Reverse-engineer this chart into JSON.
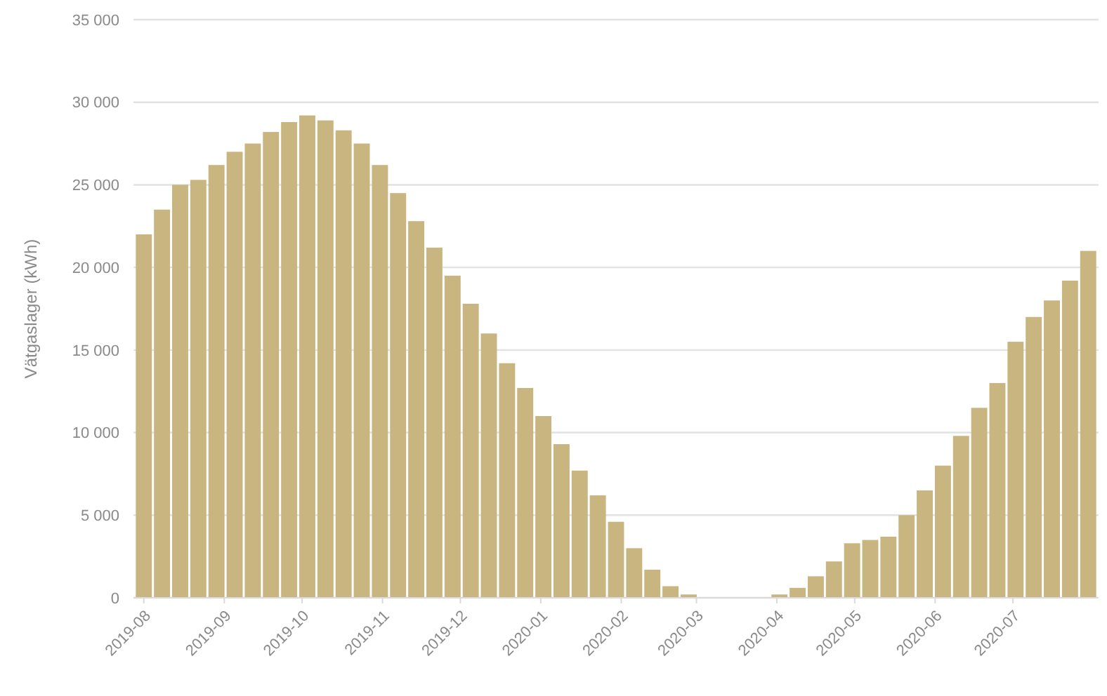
{
  "chart_data": {
    "type": "bar",
    "ylabel": "Vätgaslager (kWh)",
    "x": [
      "2019-08-01",
      "2019-08-08",
      "2019-08-15",
      "2019-08-22",
      "2019-08-29",
      "2019-09-05",
      "2019-09-12",
      "2019-09-19",
      "2019-09-26",
      "2019-10-03",
      "2019-10-10",
      "2019-10-17",
      "2019-10-24",
      "2019-10-31",
      "2019-11-07",
      "2019-11-14",
      "2019-11-21",
      "2019-11-28",
      "2019-12-05",
      "2019-12-12",
      "2019-12-19",
      "2019-12-26",
      "2020-01-02",
      "2020-01-09",
      "2020-01-16",
      "2020-01-23",
      "2020-01-30",
      "2020-02-06",
      "2020-02-13",
      "2020-02-20",
      "2020-02-27",
      "2020-03-05",
      "2020-03-12",
      "2020-03-19",
      "2020-03-26",
      "2020-04-02",
      "2020-04-09",
      "2020-04-16",
      "2020-04-23",
      "2020-04-30",
      "2020-05-07",
      "2020-05-14",
      "2020-05-21",
      "2020-05-28",
      "2020-06-04",
      "2020-06-11",
      "2020-06-18",
      "2020-06-25",
      "2020-07-02",
      "2020-07-09",
      "2020-07-16",
      "2020-07-23",
      "2020-07-30"
    ],
    "values": [
      22000,
      23500,
      25000,
      25300,
      26200,
      27000,
      27500,
      28200,
      28800,
      29200,
      28900,
      28300,
      27500,
      26200,
      24500,
      22800,
      21200,
      19500,
      17800,
      16000,
      14200,
      12700,
      11000,
      9300,
      7700,
      6200,
      4600,
      3000,
      1700,
      700,
      200,
      0,
      0,
      0,
      0,
      200,
      600,
      1300,
      2200,
      3300,
      3500,
      3700,
      5000,
      6500,
      8000,
      9800,
      11500,
      13000,
      15500,
      17000,
      18000,
      19200,
      21000
    ],
    "color": "#c9b57f",
    "xlim": [
      "2019-07-28",
      "2020-08-03"
    ],
    "xticks": [
      "2019-08",
      "2019-09",
      "2019-10",
      "2019-11",
      "2019-12",
      "2020-01",
      "2020-02",
      "2020-03",
      "2020-04",
      "2020-05",
      "2020-06",
      "2020-07"
    ],
    "ylim": [
      0,
      35000
    ],
    "yticks": [
      0,
      {
        "value": 5000,
        "label": "5 000"
      },
      {
        "value": 10000,
        "label": "10 000"
      },
      {
        "value": 15000,
        "label": "15 000"
      },
      {
        "value": 20000,
        "label": "20 000"
      },
      {
        "value": 25000,
        "label": "25 000"
      },
      {
        "value": 30000,
        "label": "30 000"
      },
      {
        "value": 35000,
        "label": "35 000"
      }
    ],
    "grid": "y"
  }
}
